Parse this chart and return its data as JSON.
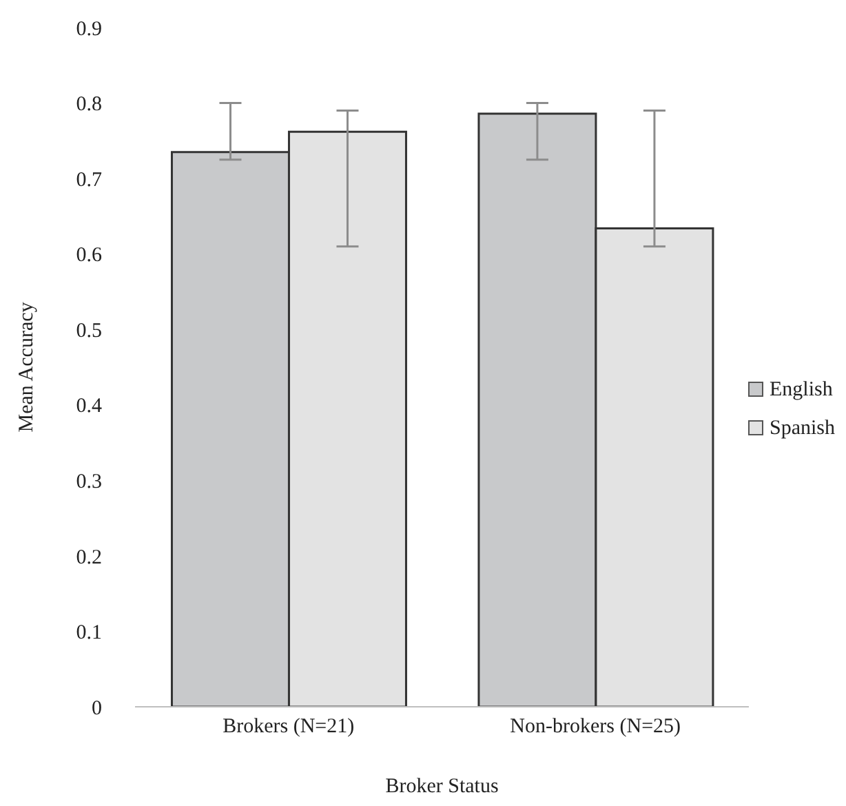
{
  "chart_data": {
    "type": "bar",
    "xlabel": "Broker Status",
    "ylabel": "Mean Accuracy",
    "categories": [
      "Brokers (N=21)",
      "Non-brokers (N=25)"
    ],
    "series": [
      {
        "name": "English",
        "color": "#c8c9cb",
        "values": [
          0.735,
          0.786
        ],
        "errors": [
          [
            0.725,
            0.8
          ],
          [
            0.725,
            0.8
          ]
        ]
      },
      {
        "name": "Spanish",
        "color": "#e3e3e3",
        "values": [
          0.762,
          0.634
        ],
        "errors": [
          [
            0.61,
            0.79
          ],
          [
            0.61,
            0.79
          ]
        ]
      }
    ],
    "ylim": [
      0,
      0.9
    ],
    "yticks": [
      0,
      0.1,
      0.2,
      0.3,
      0.4,
      0.5,
      0.6,
      0.7,
      0.8,
      0.9
    ],
    "grid": false,
    "legend": "right"
  }
}
